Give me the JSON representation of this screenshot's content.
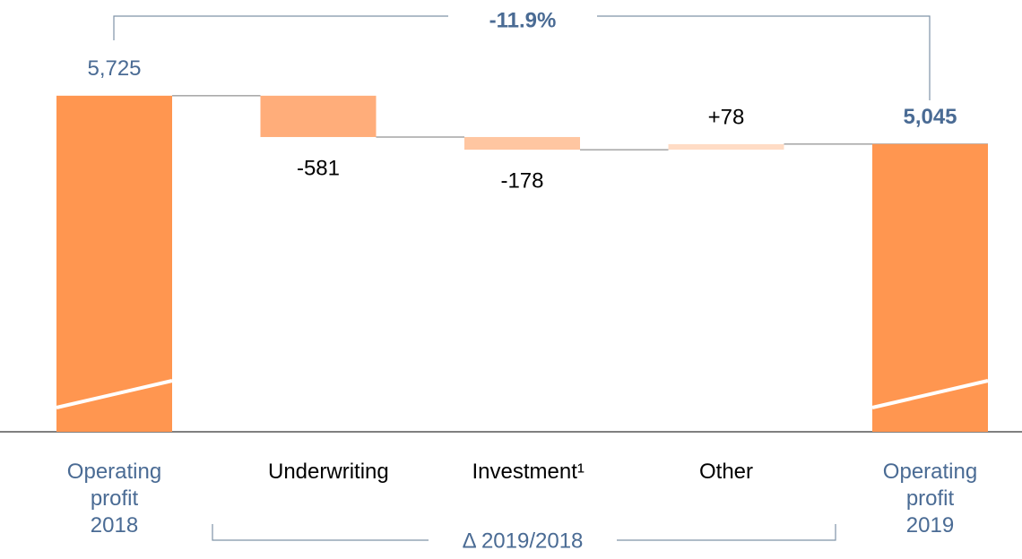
{
  "chart_data": {
    "type": "waterfall",
    "categories": [
      "Operating profit 2018",
      "Underwriting",
      "Investment¹",
      "Other",
      "Operating profit 2019"
    ],
    "values": [
      5725,
      -581,
      -178,
      78,
      5045
    ],
    "value_labels": [
      "5,725",
      "-581",
      "-178",
      "+78",
      "5,045"
    ],
    "totals": [
      true,
      false,
      false,
      false,
      true
    ],
    "colors": [
      "#ff9650",
      "#ffad7a",
      "#ffc6a1",
      "#ffdcc5",
      "#ff9650"
    ],
    "annotations": [
      "-11.9%",
      "Δ 2019/2018"
    ],
    "ylim": [
      1000,
      6000
    ],
    "broken_axis": true
  }
}
